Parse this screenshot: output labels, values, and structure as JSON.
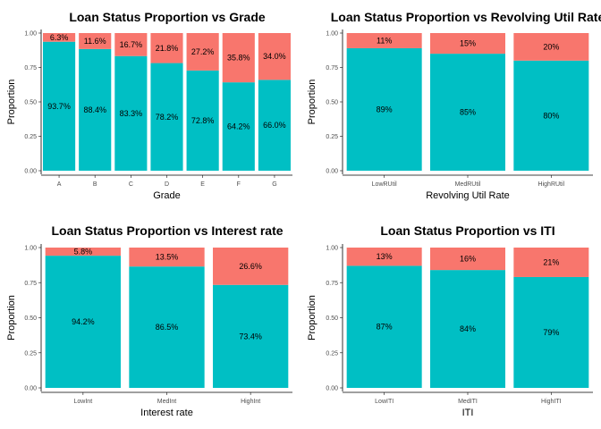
{
  "chart_data": [
    {
      "type": "bar",
      "stacked": true,
      "title": "Loan Status Proportion vs Grade",
      "xlabel": "Grade",
      "ylabel": "Proportion",
      "ylim": [
        0,
        1
      ],
      "yticks": [
        "0.00",
        "0.25",
        "0.50",
        "0.75",
        "1.00"
      ],
      "categories": [
        "A",
        "B",
        "C",
        "D",
        "E",
        "F",
        "G"
      ],
      "series": [
        {
          "color": "#00BFC4",
          "values": [
            0.937,
            0.884,
            0.833,
            0.782,
            0.728,
            0.642,
            0.66
          ],
          "labels": [
            "93.7%",
            "88.4%",
            "83.3%",
            "78.2%",
            "72.8%",
            "64.2%",
            "66.0%"
          ]
        },
        {
          "color": "#F8766D",
          "values": [
            0.063,
            0.116,
            0.167,
            0.218,
            0.272,
            0.358,
            0.34
          ],
          "labels": [
            "6.3%",
            "11.6%",
            "16.7%",
            "21.8%",
            "27.2%",
            "35.8%",
            "34.0%"
          ]
        }
      ],
      "grid": false
    },
    {
      "type": "bar",
      "stacked": true,
      "title": "Loan Status Proportion vs Revolving Util Rate",
      "xlabel": "Revolving Util Rate",
      "ylabel": "Proportion",
      "ylim": [
        0,
        1
      ],
      "yticks": [
        "0.00",
        "0.25",
        "0.50",
        "0.75",
        "1.00"
      ],
      "categories": [
        "LowRUtil",
        "MedRUtil",
        "HighRUtil"
      ],
      "series": [
        {
          "color": "#00BFC4",
          "values": [
            0.89,
            0.85,
            0.8
          ],
          "labels": [
            "89%",
            "85%",
            "80%"
          ]
        },
        {
          "color": "#F8766D",
          "values": [
            0.11,
            0.15,
            0.2
          ],
          "labels": [
            "11%",
            "15%",
            "20%"
          ]
        }
      ],
      "grid": false
    },
    {
      "type": "bar",
      "stacked": true,
      "title": "Loan Status Proportion vs Interest rate",
      "xlabel": "Interest rate",
      "ylabel": "Proportion",
      "ylim": [
        0,
        1
      ],
      "yticks": [
        "0.00",
        "0.25",
        "0.50",
        "0.75",
        "1.00"
      ],
      "categories": [
        "LowInt",
        "MedInt",
        "HighInt"
      ],
      "series": [
        {
          "color": "#00BFC4",
          "values": [
            0.942,
            0.865,
            0.734
          ],
          "labels": [
            "94.2%",
            "86.5%",
            "73.4%"
          ]
        },
        {
          "color": "#F8766D",
          "values": [
            0.058,
            0.135,
            0.266
          ],
          "labels": [
            "5.8%",
            "13.5%",
            "26.6%"
          ]
        }
      ],
      "grid": false
    },
    {
      "type": "bar",
      "stacked": true,
      "title": "Loan Status Proportion vs ITI",
      "xlabel": "ITI",
      "ylabel": "Proportion",
      "ylim": [
        0,
        1
      ],
      "yticks": [
        "0.00",
        "0.25",
        "0.50",
        "0.75",
        "1.00"
      ],
      "categories": [
        "LowITI",
        "MedITI",
        "HighITI"
      ],
      "series": [
        {
          "color": "#00BFC4",
          "values": [
            0.87,
            0.84,
            0.79
          ],
          "labels": [
            "87%",
            "84%",
            "79%"
          ]
        },
        {
          "color": "#F8766D",
          "values": [
            0.13,
            0.16,
            0.21
          ],
          "labels": [
            "13%",
            "16%",
            "21%"
          ]
        }
      ],
      "grid": false
    }
  ]
}
